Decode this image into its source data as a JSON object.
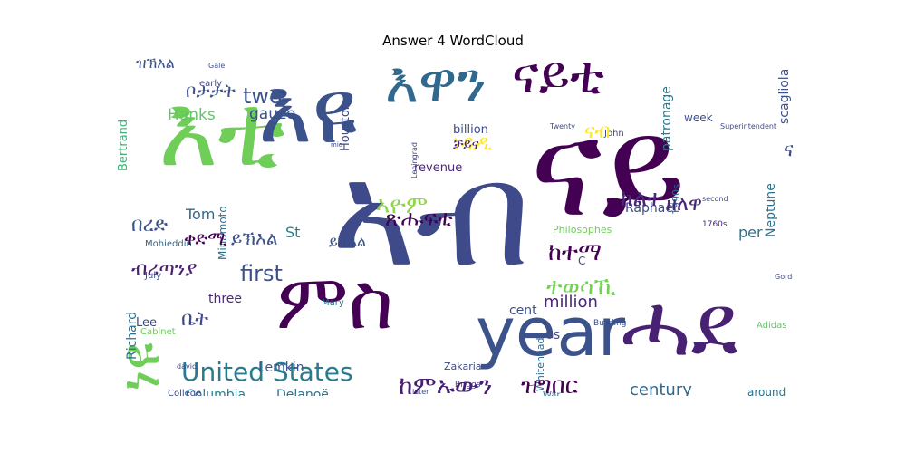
{
  "chart_data": {
    "type": "wordcloud",
    "title": "Answer 4 WordCloud",
    "words": [
      {
        "text": "እቲ",
        "color": "#6ECE58"
      },
      {
        "text": "እዩ",
        "color": "#3B528B"
      },
      {
        "text": "እዋን",
        "color": "#31688E"
      },
      {
        "text": "ናይቲ",
        "color": "#440154"
      },
      {
        "text": "ኣብ",
        "color": "#3E4A89"
      },
      {
        "text": "ናይ",
        "color": "#440154"
      },
      {
        "text": "year",
        "color": "#3B528B"
      },
      {
        "text": "ምስ",
        "color": "#440154"
      },
      {
        "text": "ሓደ",
        "color": "#482173"
      },
      {
        "text": "ነዩ",
        "color": "#6ECE58"
      },
      {
        "text": "United States",
        "color": "#287C8E"
      },
      {
        "text": "two",
        "color": "#3B528B"
      },
      {
        "text": "first",
        "color": "#3B528B"
      },
      {
        "text": "million",
        "color": "#482878"
      },
      {
        "text": "century",
        "color": "#31688E"
      },
      {
        "text": "Columbia",
        "color": "#287C8E"
      },
      {
        "text": "revenue",
        "color": "#482878"
      },
      {
        "text": "Neptune",
        "color": "#2C728E"
      },
      {
        "text": "scagliola",
        "color": "#3B528B"
      },
      {
        "text": "patronage",
        "color": "#287C8E"
      },
      {
        "text": "Raphael",
        "color": "#3E4A89"
      },
      {
        "text": "gauze",
        "color": "#3B528B"
      },
      {
        "text": "Hanks",
        "color": "#5EC962"
      },
      {
        "text": "Tom",
        "color": "#31688E"
      },
      {
        "text": "St",
        "color": "#26828E"
      },
      {
        "text": "Lee",
        "color": "#3E4A89"
      },
      {
        "text": "Lemkin",
        "color": "#3B528B"
      },
      {
        "text": "Richard",
        "color": "#2C728E"
      },
      {
        "text": "Bertrand",
        "color": "#35B779"
      },
      {
        "text": "three",
        "color": "#482878"
      },
      {
        "text": "cent",
        "color": "#3B528B"
      },
      {
        "text": "per",
        "color": "#2C728E"
      },
      {
        "text": "Delanoë",
        "color": "#2C728E"
      },
      {
        "text": "billion",
        "color": "#3E4A89"
      },
      {
        "text": "Houston",
        "color": "#3E4A89"
      },
      {
        "text": "Minamoto",
        "color": "#2C728E"
      },
      {
        "text": "Mohieddin",
        "color": "#31688E"
      },
      {
        "text": "Mary",
        "color": "#2C728E"
      },
      {
        "text": "July",
        "color": "#3B528B"
      },
      {
        "text": "week",
        "color": "#3E4A89"
      },
      {
        "text": "Whitehead",
        "color": "#31688E"
      },
      {
        "text": "Zakaria",
        "color": "#3E4A89"
      },
      {
        "text": "around",
        "color": "#2C728E"
      },
      {
        "text": "Adidas",
        "color": "#5EC962"
      },
      {
        "text": "Philosophes",
        "color": "#6ECE58"
      },
      {
        "text": "John",
        "color": "#3E4A89"
      },
      {
        "text": "Briggs",
        "color": "#3E4A89"
      },
      {
        "text": "College",
        "color": "#3E4A89"
      },
      {
        "text": "War",
        "color": "#2C728E"
      },
      {
        "text": "Building",
        "color": "#3B528B"
      },
      {
        "text": "Cabinet",
        "color": "#6ECE58"
      },
      {
        "text": "1990s",
        "color": "#31688E"
      },
      {
        "text": "1760s",
        "color": "#482878"
      },
      {
        "text": "0s",
        "color": "#3E4A89"
      },
      {
        "text": "early",
        "color": "#3E4A89"
      },
      {
        "text": "Gale",
        "color": "#3B528B"
      },
      {
        "text": "mid",
        "color": "#3E4A89"
      },
      {
        "text": "second",
        "color": "#3E4A89"
      },
      {
        "text": "Twenty",
        "color": "#3E4A89"
      },
      {
        "text": "Superintendent",
        "color": "#3E4A89"
      },
      {
        "text": "Leningrad",
        "color": "#3E4A89"
      },
      {
        "text": "Gordon",
        "color": "#3E4A89"
      },
      {
        "text": "david",
        "color": "#3E4A89"
      },
      {
        "text": "later",
        "color": "#3E4A89"
      },
      {
        "text": "C",
        "color": "#3E4A89"
      },
      {
        "text": "ናብ",
        "color": "#FDE725"
      },
      {
        "text": "ከተማ",
        "color": "#440154"
      },
      {
        "text": "ክልተ",
        "color": "#482878"
      },
      {
        "text": "ዘለዋ",
        "color": "#482878"
      },
      {
        "text": "ቀድሚ",
        "color": "#440154"
      },
      {
        "text": "ብሪጣንያ",
        "color": "#482173"
      },
      {
        "text": "ኣዮም",
        "color": "#8FD744"
      },
      {
        "text": "ጽሑፍቲ",
        "color": "#440154"
      },
      {
        "text": "ተወሳኺ",
        "color": "#73D055"
      },
      {
        "text": "ከምኡውን",
        "color": "#481F70"
      },
      {
        "text": "ዝግበር",
        "color": "#440154"
      },
      {
        "text": "ቤት",
        "color": "#3E4A89"
      },
      {
        "text": "ይኽእል",
        "color": "#3B528B"
      },
      {
        "text": "ቦታታት",
        "color": "#3B528B"
      },
      {
        "text": "ዝኽእል",
        "color": "#3B528B"
      },
      {
        "text": "ናይራ",
        "color": "#3E4A89"
      },
      {
        "text": "ነዲዲ",
        "color": "#FDE725"
      },
      {
        "text": "ቻይና",
        "color": "#482878"
      },
      {
        "text": "በረድ",
        "color": "#3B528B"
      },
      {
        "text": "ይኽእል",
        "color": "#3B528B"
      }
    ]
  }
}
